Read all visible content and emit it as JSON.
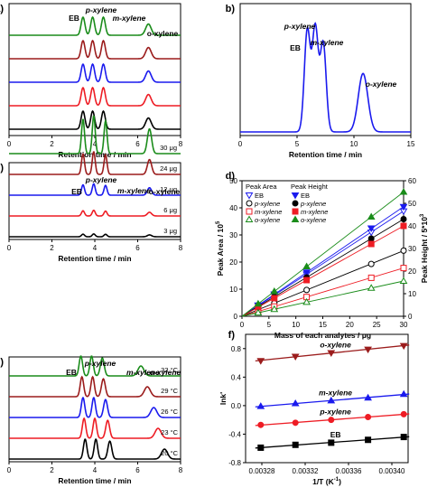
{
  "chart_data": [
    {
      "id": "a",
      "panel_label": "a)",
      "type": "line",
      "xlabel": "Retention time / min",
      "xticks": [
        "0",
        "2",
        "4",
        "6",
        "8"
      ],
      "xlim": [
        0,
        8
      ],
      "peak_labels": [
        {
          "text": "EB",
          "italic": false
        },
        {
          "text": "p-xylene",
          "italic": true
        },
        {
          "text": "m-xylene",
          "italic": true
        },
        {
          "text": "o-xylene",
          "italic": false
        }
      ],
      "peaks_min": [
        3.45,
        3.9,
        4.4,
        6.5
      ],
      "series": [
        {
          "color": "#000000"
        },
        {
          "color": "#ee1c24"
        },
        {
          "color": "#1a1aee"
        },
        {
          "color": "#9b1c1c"
        },
        {
          "color": "#1a8c1a"
        }
      ]
    },
    {
      "id": "b",
      "panel_label": "b)",
      "type": "line",
      "xlabel": "Retention time / min",
      "xticks": [
        "0",
        "5",
        "10",
        "15"
      ],
      "xlim": [
        0,
        15
      ],
      "peak_labels": [
        {
          "text": "EB",
          "italic": false
        },
        {
          "text": "p-xylene",
          "italic": true
        },
        {
          "text": "m-xylene",
          "italic": true
        },
        {
          "text": "o-xylene",
          "italic": true
        }
      ],
      "peaks_min": [
        5.9,
        6.6,
        7.3,
        10.8
      ],
      "series": [
        {
          "color": "#1a1aee"
        }
      ]
    },
    {
      "id": "c",
      "panel_label": "c)",
      "type": "line",
      "xlabel": "Retention time / min",
      "xticks": [
        "0",
        "2",
        "4",
        "6",
        "8"
      ],
      "xlim": [
        0,
        8
      ],
      "peak_labels": [
        {
          "text": "EB",
          "italic": false
        },
        {
          "text": "p-xylene",
          "italic": true
        },
        {
          "text": "m-xylene",
          "italic": true
        },
        {
          "text": "o-xylene",
          "italic": false
        }
      ],
      "peaks_min": [
        3.45,
        3.95,
        4.5,
        6.55
      ],
      "series": [
        {
          "name": "3 μg",
          "color": "#000000"
        },
        {
          "name": "6 μg",
          "color": "#ee1c24"
        },
        {
          "name": "12 μg",
          "color": "#1a1aee"
        },
        {
          "name": "24 μg",
          "color": "#9b1c1c"
        },
        {
          "name": "30 μg",
          "color": "#1a8c1a"
        }
      ]
    },
    {
      "id": "d",
      "panel_label": "d)",
      "type": "scatter",
      "xlabel": "Mass of each analytes / μg",
      "ylabel": "Peak Area / 10",
      "ylabel_sup": "5",
      "y2label": "Peak Height / 5*10",
      "y2label_sup": "3",
      "xlim": [
        0,
        30
      ],
      "ylim": [
        0,
        50
      ],
      "y2lim": [
        0,
        60
      ],
      "xticks": [
        "0",
        "5",
        "10",
        "15",
        "20",
        "25",
        "30"
      ],
      "yticks": [
        "0",
        "10",
        "20",
        "30",
        "40",
        "50"
      ],
      "y2ticks": [
        "0",
        "10",
        "20",
        "30",
        "40",
        "50",
        "60"
      ],
      "legend_area_title": "Peak Area",
      "legend_height_title": "Peak Height",
      "legend_location": "top-left",
      "x": [
        3,
        6,
        12,
        24,
        30
      ],
      "series": [
        {
          "name": "EB",
          "italic": false,
          "color": "#1a1aee",
          "marker_area": "tri-down-open",
          "marker_height": "tri-down-filled",
          "area": [
            3.9,
            7.8,
            15.5,
            31.0,
            38.8
          ],
          "height": [
            4.9,
            9.8,
            19.5,
            39.0,
            48.5
          ]
        },
        {
          "name": "p-xylene",
          "italic": true,
          "color": "#000000",
          "marker_area": "circle-open",
          "marker_height": "circle-filled",
          "area": [
            2.4,
            4.8,
            9.7,
            19.3,
            24.2
          ],
          "height": [
            4.3,
            8.6,
            17.2,
            34.4,
            43.0
          ]
        },
        {
          "name": "m-xylene",
          "italic": true,
          "color": "#ee1c24",
          "marker_area": "square-open",
          "marker_height": "square-filled",
          "area": [
            1.8,
            3.6,
            7.1,
            14.2,
            17.8
          ],
          "height": [
            4.0,
            8.0,
            16.0,
            32.0,
            40.0
          ]
        },
        {
          "name": "o-xylene",
          "italic": true,
          "color": "#1a8c1a",
          "marker_area": "tri-up-open",
          "marker_height": "tri-up-filled",
          "area": [
            1.3,
            2.6,
            5.2,
            10.4,
            13.0
          ],
          "height": [
            5.5,
            11.0,
            22.0,
            44.0,
            55.0
          ]
        }
      ]
    },
    {
      "id": "e",
      "panel_label": "e)",
      "type": "line",
      "xlabel": "Retention time / min",
      "xticks": [
        "0",
        "2",
        "4",
        "6",
        "8"
      ],
      "xlim": [
        0,
        8
      ],
      "peak_labels": [
        {
          "text": "EB",
          "italic": false
        },
        {
          "text": "p-xylene",
          "italic": true
        },
        {
          "text": "m-xylene",
          "italic": true
        },
        {
          "text": "o-xylene",
          "italic": true
        }
      ],
      "series": [
        {
          "name": "20 °C",
          "color": "#000000",
          "peaks_min": [
            3.55,
            4.05,
            4.7,
            7.25
          ]
        },
        {
          "name": "23 °C",
          "color": "#ee1c24",
          "peaks_min": [
            3.5,
            4.0,
            4.6,
            6.95
          ]
        },
        {
          "name": "26 °C",
          "color": "#1a1aee",
          "peaks_min": [
            3.45,
            3.95,
            4.5,
            6.75
          ]
        },
        {
          "name": "29 °C",
          "color": "#9b1c1c",
          "peaks_min": [
            3.4,
            3.9,
            4.4,
            6.45
          ]
        },
        {
          "name": "32 °C",
          "color": "#1a8c1a",
          "peaks_min": [
            3.35,
            3.85,
            4.35,
            6.15
          ]
        }
      ]
    },
    {
      "id": "f",
      "panel_label": "f)",
      "type": "scatter",
      "xlabel": "1/T (K",
      "xlabel_sup": "-1",
      "xlabel_end": ")",
      "ylabel": "lnk'",
      "xlim": [
        0.003265,
        0.003415
      ],
      "ylim": [
        -0.8,
        1.0
      ],
      "xtick_values": [
        0.00328,
        0.00332,
        0.00336,
        0.0034
      ],
      "xticks": [
        "0.00328",
        "0.00332",
        "0.00336",
        "0.00340"
      ],
      "ytick_values": [
        -0.8,
        -0.4,
        0.0,
        0.4,
        0.8
      ],
      "yticks": [
        "-0.8",
        "-0.4",
        "0.0",
        "0.4",
        "0.8"
      ],
      "x": [
        0.003279,
        0.003311,
        0.003344,
        0.003378,
        0.003411
      ],
      "series": [
        {
          "name": "o-xylene",
          "italic": true,
          "color": "#9b1c1c",
          "marker": "tri-down-filled",
          "y": [
            0.63,
            0.69,
            0.74,
            0.79,
            0.84
          ]
        },
        {
          "name": "m-xylene",
          "italic": true,
          "color": "#1a1aee",
          "marker": "tri-up-filled",
          "y": [
            -0.01,
            0.03,
            0.07,
            0.11,
            0.16
          ]
        },
        {
          "name": "p-xylene",
          "italic": true,
          "color": "#ee1c24",
          "marker": "circle-filled",
          "y": [
            -0.27,
            -0.24,
            -0.2,
            -0.16,
            -0.12
          ]
        },
        {
          "name": "EB",
          "italic": false,
          "color": "#000000",
          "marker": "square-filled",
          "y": [
            -0.59,
            -0.55,
            -0.52,
            -0.48,
            -0.44
          ]
        }
      ]
    }
  ]
}
